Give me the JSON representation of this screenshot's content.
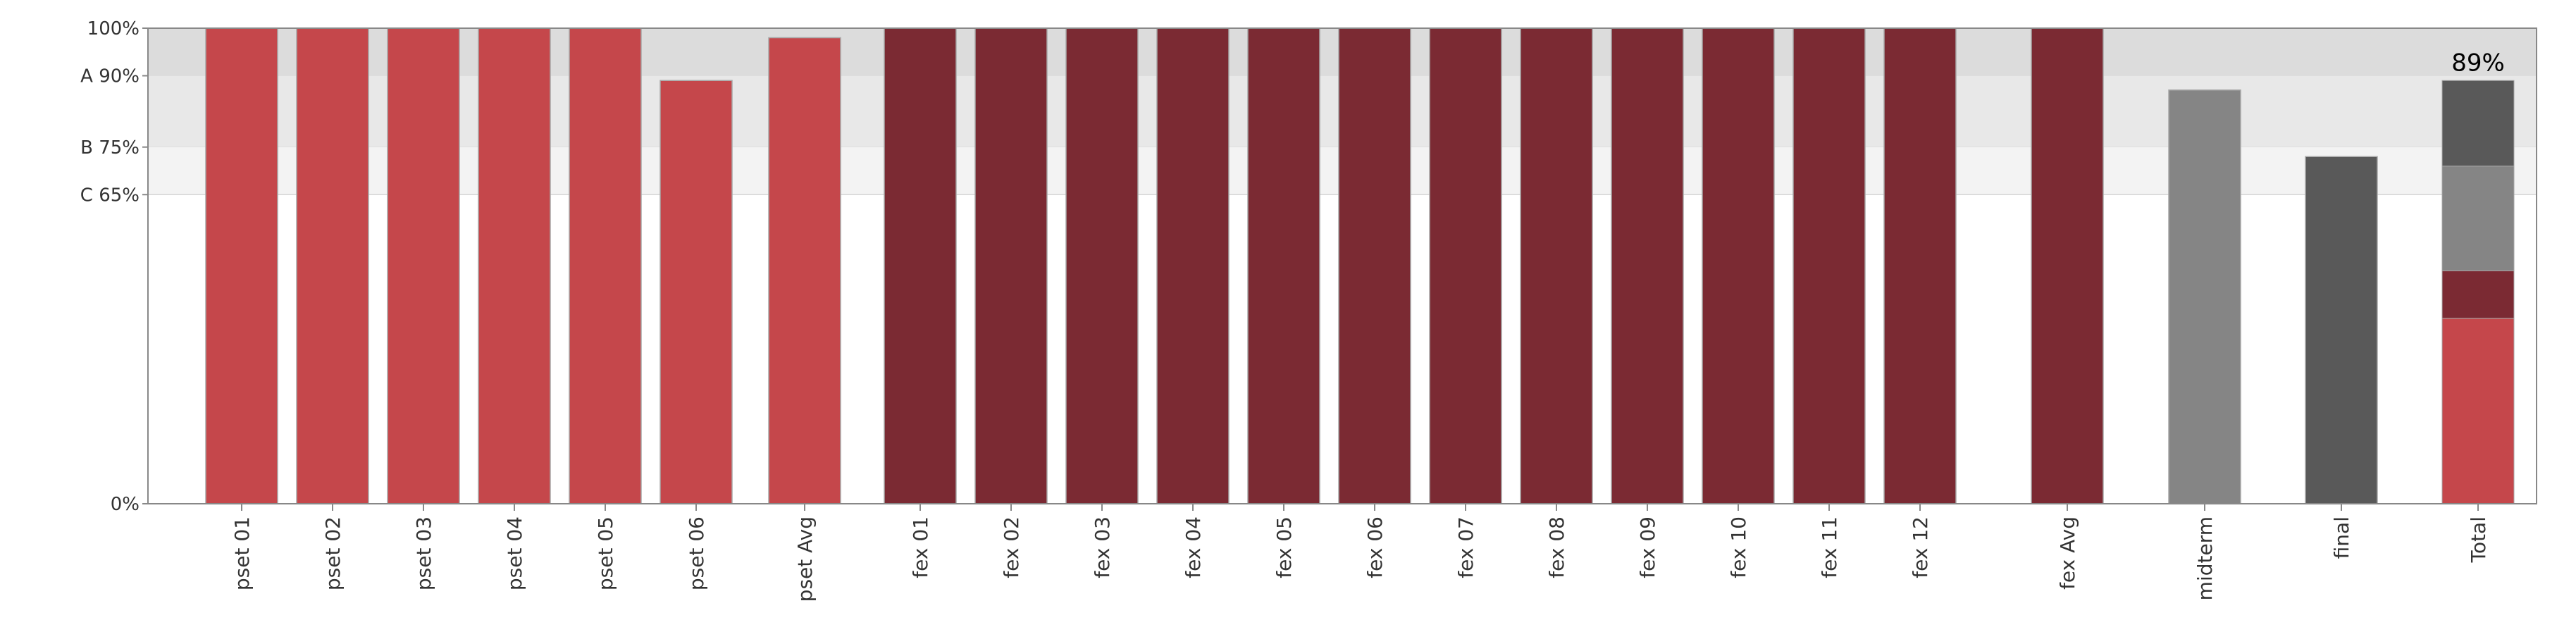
{
  "chart_data": {
    "type": "bar",
    "title": "",
    "xlabel": "",
    "ylabel": "",
    "ylim": [
      0,
      100
    ],
    "grade_bands": [
      {
        "label": "A 90%",
        "from": 90,
        "to": 100,
        "color": "#dcdcdc"
      },
      {
        "label": "B 75%",
        "from": 75,
        "to": 90,
        "color": "#e8e8e8"
      },
      {
        "label": "C 65%",
        "from": 65,
        "to": 75,
        "color": "#f3f3f3"
      }
    ],
    "y_ticks": [
      {
        "value": 100,
        "label": "100%"
      },
      {
        "value": 90,
        "label": "A 90%"
      },
      {
        "value": 75,
        "label": "B 75%"
      },
      {
        "value": 65,
        "label": "C 65%"
      },
      {
        "value": 0,
        "label": "0%"
      }
    ],
    "categories": [
      "pset 01",
      "pset 02",
      "pset 03",
      "pset 04",
      "pset 05",
      "pset 06",
      "pset Avg",
      "fex 01",
      "fex 02",
      "fex 03",
      "fex 04",
      "fex 05",
      "fex 06",
      "fex 07",
      "fex 08",
      "fex 09",
      "fex 10",
      "fex 11",
      "fex 12",
      "fex Avg",
      "midterm",
      "final",
      "Total"
    ],
    "series": [
      {
        "name": "pset",
        "color": "#c5474b",
        "values": [
          100,
          100,
          100,
          100,
          100,
          89,
          98,
          null,
          null,
          null,
          null,
          null,
          null,
          null,
          null,
          null,
          null,
          null,
          null,
          null,
          null,
          null,
          null
        ]
      },
      {
        "name": "fex",
        "color": "#7b2a33",
        "values": [
          null,
          null,
          null,
          null,
          null,
          null,
          null,
          100,
          100,
          100,
          100,
          100,
          100,
          100,
          100,
          100,
          100,
          100,
          100,
          100,
          null,
          null,
          null
        ]
      },
      {
        "name": "midterm",
        "color": "#858585",
        "values": [
          null,
          null,
          null,
          null,
          null,
          null,
          null,
          null,
          null,
          null,
          null,
          null,
          null,
          null,
          null,
          null,
          null,
          null,
          null,
          null,
          87,
          null,
          null
        ]
      },
      {
        "name": "final",
        "color": "#595959",
        "values": [
          null,
          null,
          null,
          null,
          null,
          null,
          null,
          null,
          null,
          null,
          null,
          null,
          null,
          null,
          null,
          null,
          null,
          null,
          null,
          null,
          null,
          73,
          null
        ]
      }
    ],
    "total": {
      "label": "89%",
      "stack": [
        {
          "name": "pset",
          "value": 39,
          "color": "#c5474b"
        },
        {
          "name": "fex",
          "value": 10,
          "color": "#7b2a33"
        },
        {
          "name": "midterm",
          "value": 22,
          "color": "#858585"
        },
        {
          "name": "final",
          "value": 18,
          "color": "#595959"
        }
      ]
    }
  }
}
